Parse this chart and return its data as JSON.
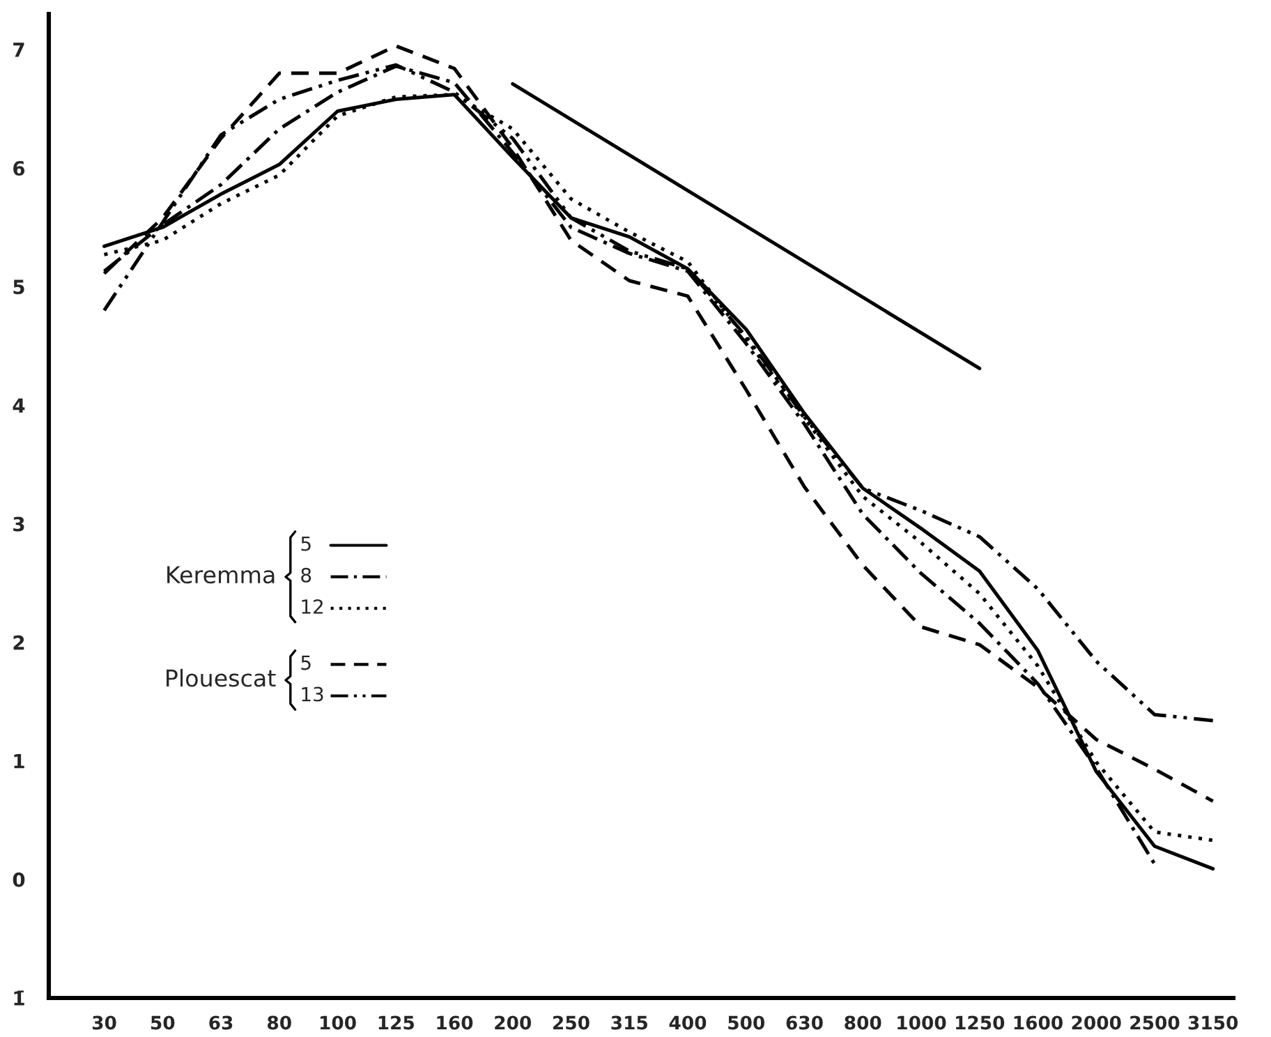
{
  "chart_data": {
    "type": "line",
    "categories": [
      "30",
      "50",
      "63",
      "80",
      "100",
      "125",
      "160",
      "200",
      "250",
      "315",
      "400",
      "500",
      "630",
      "800",
      "1000",
      "1250",
      "1600",
      "2000",
      "2500",
      "3150"
    ],
    "ylim": [
      -1,
      7.3
    ],
    "yticks": [
      {
        "value": -1,
        "label": "1̄"
      },
      0,
      1,
      2,
      3,
      4,
      5,
      6,
      7
    ],
    "annotations": [
      "Keremma",
      "Plouescat"
    ],
    "legend": "left",
    "grid": false,
    "series": [
      {
        "name": "5",
        "color": "#000000",
        "line_style": "solid",
        "values": [
          5.34,
          5.5,
          5.78,
          6.03,
          6.48,
          6.58,
          6.62,
          6.09,
          5.58,
          5.42,
          5.15,
          4.64,
          3.93,
          3.3,
          2.96,
          2.6,
          1.93,
          0.91,
          0.28,
          0.09
        ]
      },
      {
        "name": "8",
        "color": "#000000",
        "line_style": "dashdot",
        "values": [
          5.13,
          5.52,
          5.86,
          6.33,
          6.64,
          6.86,
          6.72,
          6.13,
          5.5,
          5.28,
          5.13,
          4.52,
          3.84,
          3.08,
          2.58,
          2.16,
          1.65,
          0.94,
          0.13,
          null
        ]
      },
      {
        "name": "12",
        "color": "#000000",
        "line_style": "dotted",
        "values": [
          5.27,
          5.39,
          5.7,
          5.94,
          6.44,
          6.6,
          6.62,
          6.33,
          5.74,
          5.46,
          5.21,
          4.56,
          3.89,
          3.23,
          2.84,
          2.41,
          1.8,
          0.99,
          0.4,
          0.33
        ]
      },
      {
        "name": "5",
        "color": "#000000",
        "line_style": "dashed",
        "values": [
          5.11,
          5.58,
          6.25,
          6.8,
          6.8,
          7.03,
          6.84,
          6.17,
          5.39,
          5.05,
          4.92,
          4.13,
          3.31,
          2.65,
          2.13,
          1.98,
          1.62,
          1.18,
          0.93,
          0.66
        ]
      },
      {
        "name": "13",
        "color": "#000000",
        "line_style": "dashdotdot",
        "values": [
          4.8,
          5.54,
          6.28,
          6.58,
          6.74,
          6.87,
          6.64,
          6.25,
          5.58,
          5.3,
          5.15,
          4.58,
          3.9,
          3.3,
          3.11,
          2.89,
          2.45,
          1.84,
          1.39,
          1.34
        ]
      },
      {
        "color": "#000000",
        "line_style": "solid",
        "values": [
          null,
          null,
          null,
          null,
          null,
          null,
          null,
          6.71,
          null,
          null,
          null,
          null,
          null,
          null,
          null,
          4.31,
          null,
          null,
          null,
          null
        ]
      }
    ]
  }
}
